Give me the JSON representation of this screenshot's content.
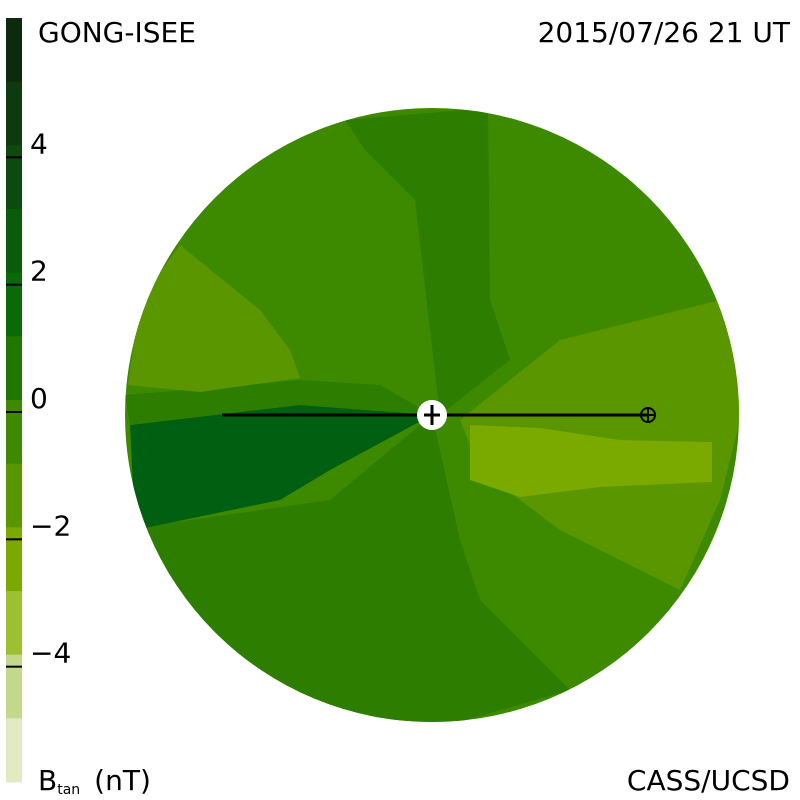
{
  "header": {
    "left": "GONG-ISEE",
    "right": "2015/07/26 21 UT"
  },
  "colorbar": {
    "lim": [
      -6,
      6
    ],
    "ticks": [
      {
        "value": 4,
        "label": "4"
      },
      {
        "value": 2,
        "label": "2"
      },
      {
        "value": 0,
        "label": "0"
      },
      {
        "value": -2,
        "label": "−2"
      },
      {
        "value": -4,
        "label": "−4"
      }
    ],
    "colors": [
      "#0c2a0c",
      "#0f3a0f",
      "#0d4a0d",
      "#0a5c0a",
      "#0a6a0a",
      "#227700",
      "#3d8a00",
      "#5a9600",
      "#7aaa00",
      "#9cc030",
      "#c4d88c",
      "#e0ebc4"
    ],
    "label_symbol": "B",
    "label_subscript": "tan",
    "label_unit": "(nT)"
  },
  "footer": {
    "right": "CASS/UCSD"
  }
}
